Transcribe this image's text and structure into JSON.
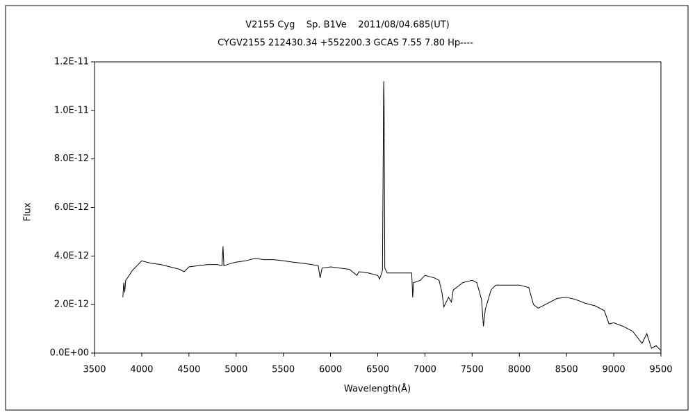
{
  "chart_data": {
    "type": "line",
    "title": "V2155 Cyg    Sp. B1Ve    2011/08/04.685(UT)",
    "subtitle": "CYGV2155 212430.34 +552200.3 GCAS 7.55 7.80 Hp----",
    "x_label": "Wavelength(Å)",
    "y_label": "Flux",
    "xlim": [
      3500,
      9500
    ],
    "xticks": [
      3500,
      4000,
      4500,
      5000,
      5500,
      6000,
      6500,
      7000,
      7500,
      8000,
      8500,
      9000,
      9500
    ],
    "ylim": [
      0,
      1.2e-11
    ],
    "yticks": [
      {
        "value": 0,
        "label": "0.0E+00"
      },
      {
        "value": 2e-12,
        "label": "2.0E-12"
      },
      {
        "value": 4e-12,
        "label": "4.0E-12"
      },
      {
        "value": 6e-12,
        "label": "6.0E-12"
      },
      {
        "value": 8e-12,
        "label": "8.0E-12"
      },
      {
        "value": 1e-11,
        "label": "1.0E-11"
      },
      {
        "value": 1.2e-11,
        "label": "1.2E-11"
      }
    ],
    "series": [
      {
        "color": "#000000",
        "x": [
          3800,
          3810,
          3820,
          3830,
          3850,
          3900,
          3950,
          4000,
          4050,
          4100,
          4200,
          4300,
          4400,
          4450,
          4500,
          4600,
          4700,
          4800,
          4850,
          4861,
          4870,
          4950,
          5000,
          5100,
          5200,
          5300,
          5400,
          5500,
          5600,
          5700,
          5800,
          5870,
          5890,
          5910,
          6000,
          6100,
          6200,
          6280,
          6300,
          6400,
          6500,
          6520,
          6550,
          6560,
          6563,
          6567,
          6575,
          6600,
          6700,
          6800,
          6860,
          6870,
          6880,
          6950,
          7000,
          7100,
          7150,
          7180,
          7200,
          7250,
          7280,
          7300,
          7350,
          7400,
          7500,
          7550,
          7600,
          7620,
          7640,
          7700,
          7750,
          7800,
          7900,
          8000,
          8100,
          8150,
          8200,
          8300,
          8400,
          8500,
          8600,
          8700,
          8800,
          8900,
          8950,
          9000,
          9100,
          9200,
          9300,
          9350,
          9400,
          9450,
          9500
        ],
        "values": [
          2.3e-12,
          2.9e-12,
          2.5e-12,
          3e-12,
          3.1e-12,
          3.4e-12,
          3.6e-12,
          3.8e-12,
          3.75e-12,
          3.7e-12,
          3.65e-12,
          3.55e-12,
          3.45e-12,
          3.35e-12,
          3.55e-12,
          3.6e-12,
          3.65e-12,
          3.65e-12,
          3.6e-12,
          4.4e-12,
          3.6e-12,
          3.7e-12,
          3.75e-12,
          3.8e-12,
          3.9e-12,
          3.85e-12,
          3.85e-12,
          3.8e-12,
          3.75e-12,
          3.7e-12,
          3.65e-12,
          3.6e-12,
          3.1e-12,
          3.5e-12,
          3.55e-12,
          3.5e-12,
          3.45e-12,
          3.2e-12,
          3.35e-12,
          3.3e-12,
          3.2e-12,
          3.05e-12,
          3.4e-12,
          9.5e-12,
          1.12e-11,
          1.05e-11,
          3.5e-12,
          3.3e-12,
          3.3e-12,
          3.3e-12,
          3.3e-12,
          2.3e-12,
          2.9e-12,
          3e-12,
          3.2e-12,
          3.1e-12,
          3e-12,
          2.5e-12,
          1.9e-12,
          2.3e-12,
          2.1e-12,
          2.6e-12,
          2.75e-12,
          2.9e-12,
          3e-12,
          2.9e-12,
          2.2e-12,
          1.1e-12,
          1.8e-12,
          2.6e-12,
          2.8e-12,
          2.8e-12,
          2.8e-12,
          2.8e-12,
          2.7e-12,
          2e-12,
          1.85e-12,
          2.05e-12,
          2.25e-12,
          2.3e-12,
          2.2e-12,
          2.05e-12,
          1.95e-12,
          1.75e-12,
          1.2e-12,
          1.25e-12,
          1.1e-12,
          9e-13,
          4e-13,
          8e-13,
          2e-13,
          3e-13,
          1e-13
        ]
      }
    ]
  }
}
